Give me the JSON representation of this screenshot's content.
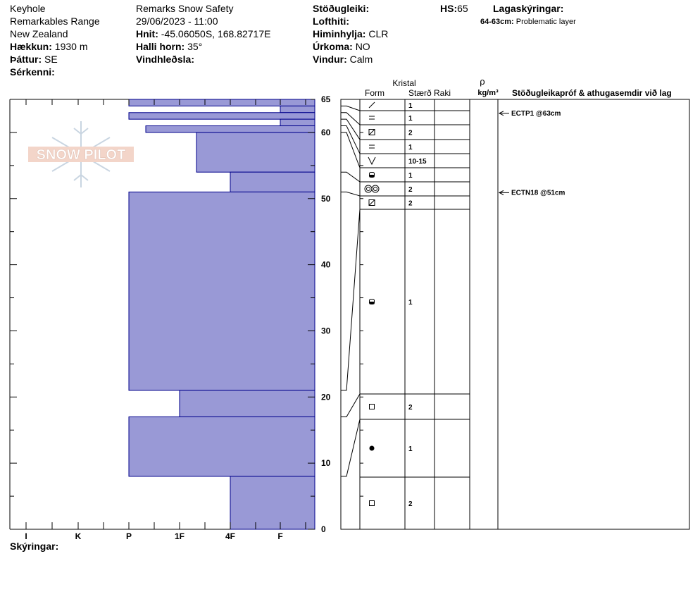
{
  "header": {
    "col1": {
      "line1": "Keyhole",
      "line2": "Remarkables Range",
      "line3": "New Zealand",
      "elevation_label": "Hækkun:",
      "elevation_value": "1930 m",
      "aspect_label": "Þáttur:",
      "aspect_value": "SE",
      "features_label": "Sérkenni:"
    },
    "col2": {
      "org": "Remarks Snow Safety",
      "datetime": "29/06/2023 - 11:00",
      "coords_label": "Hnit:",
      "coords_value": "-45.06050S, 168.82717E",
      "slope_label": "Halli horn:",
      "slope_value": "35°",
      "wind_loading_label": "Vindhleðsla:"
    },
    "col3": {
      "stability_label": "Stöðugleiki:",
      "air_temp_label": "Lofthiti:",
      "sky_label": "Himinhylja:",
      "sky_value": "CLR",
      "precip_label": "Úrkoma:",
      "precip_value": "NO",
      "wind_label": "Vindur:",
      "wind_value": "Calm"
    },
    "hs_label": "HS:",
    "hs_value": "65",
    "legend_title": "Lagaskýringar:",
    "legend_item_range": "64-63cm:",
    "legend_item_text": "Problematic layer"
  },
  "footer": {
    "remarks_label": "Skýringar:"
  },
  "watermark": "SNOW PILOT",
  "table_headers": {
    "crystal": "Kristal",
    "form": "Form",
    "size": "Stærð",
    "moisture": "Raki",
    "rho": "ρ",
    "density_unit": "kg/m³",
    "tests": "Stöðugleikapróf & athugasemdir við lag"
  },
  "colors": {
    "layer_fill": "#9999d6",
    "layer_stroke": "#00008b"
  },
  "chart_data": {
    "type": "bar",
    "title": "",
    "xlabel": "",
    "ylabel": "",
    "hardness_ticks": [
      "I",
      "K",
      "P",
      "1F",
      "4F",
      "F"
    ],
    "ylim": [
      0,
      65
    ],
    "y_ticks": [
      0,
      10,
      20,
      30,
      40,
      50,
      60,
      65
    ],
    "layers": [
      {
        "top": 65,
        "bottom": 64,
        "hardness": "P"
      },
      {
        "top": 64,
        "bottom": 63,
        "hardness": "F"
      },
      {
        "top": 63,
        "bottom": 62,
        "hardness": "P"
      },
      {
        "top": 62,
        "bottom": 61,
        "hardness": "F"
      },
      {
        "top": 61,
        "bottom": 60,
        "hardness": "P-"
      },
      {
        "top": 60,
        "bottom": 54,
        "hardness": "1F-"
      },
      {
        "top": 54,
        "bottom": 51,
        "hardness": "4F"
      },
      {
        "top": 51,
        "bottom": 21,
        "hardness": "P"
      },
      {
        "top": 21,
        "bottom": 17,
        "hardness": "1F"
      },
      {
        "top": 17,
        "bottom": 8,
        "hardness": "P"
      },
      {
        "top": 8,
        "bottom": 0,
        "hardness": "4F"
      }
    ],
    "crystal_rows": [
      {
        "symbol": "PP",
        "size": "1"
      },
      {
        "symbol": "DF",
        "size": "1"
      },
      {
        "symbol": "MFcr",
        "size": "2"
      },
      {
        "symbol": "DF",
        "size": "1"
      },
      {
        "symbol": "SH",
        "size": "10-15"
      },
      {
        "symbol": "RGxf",
        "size": "1"
      },
      {
        "symbol": "MF",
        "size": "2"
      },
      {
        "symbol": "MFcr",
        "size": "2"
      },
      {
        "symbol": "RGxf",
        "size": "1"
      },
      {
        "symbol": "FC",
        "size": "2"
      },
      {
        "symbol": "RG",
        "size": "1"
      },
      {
        "symbol": "FC",
        "size": "2"
      }
    ],
    "tests": [
      {
        "text": "ECTP1 @63cm",
        "depth": 63
      },
      {
        "text": "ECTN18 @51cm",
        "depth": 51
      }
    ]
  }
}
